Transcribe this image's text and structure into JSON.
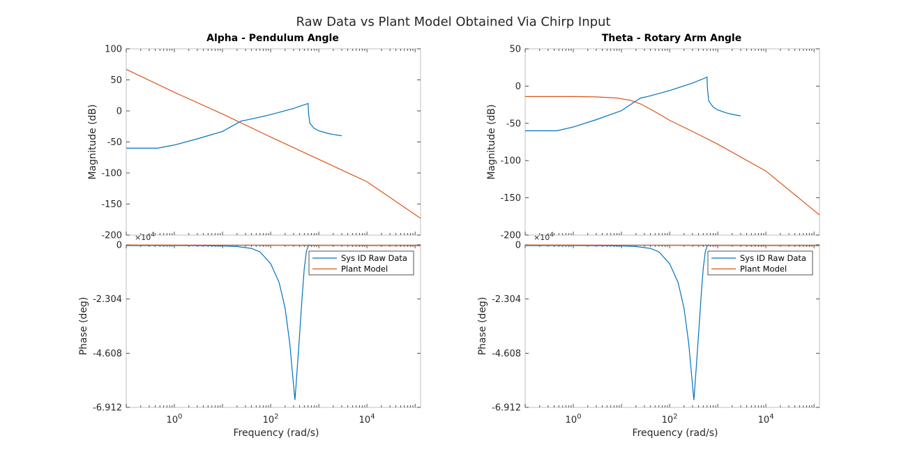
{
  "figure": {
    "title": "Raw Data vs Plant Model Obtained Via Chirp Input"
  },
  "colors": {
    "raw": "#0072BD",
    "model": "#D95319",
    "axis": "#262626",
    "frame": "#bfbfbf"
  },
  "chart_data": [
    {
      "type": "line",
      "title": "Alpha - Pendulum Angle",
      "xscale": "log",
      "xlim": [
        0.1,
        130000
      ],
      "xticks": [
        1,
        100,
        10000
      ],
      "xtick_labels": [
        {
          "base": "10",
          "exp": "0"
        },
        {
          "base": "10",
          "exp": "2"
        },
        {
          "base": "10",
          "exp": "4"
        }
      ],
      "xlabel": "Frequency  (rad/s)",
      "magnitude": {
        "ylabel": "Magnitude (dB)",
        "ylim": [
          -200,
          100
        ],
        "yticks": [
          100,
          50,
          0,
          -50,
          -100,
          -150,
          -200
        ],
        "series": [
          {
            "name": "Sys ID Raw Data",
            "x": [
              0.1,
              0.45,
              1,
              3,
              10,
              20,
              25,
              30,
              40,
              100,
              300,
              600,
              610,
              650,
              800,
              1000,
              1500,
              2000,
              3000
            ],
            "y": [
              -60,
              -60,
              -55,
              -45,
              -33,
              -20,
              -16,
              -15,
              -13,
              -6,
              4,
              12,
              -3,
              -20,
              -28,
              -32,
              -36,
              -38,
              -40
            ]
          },
          {
            "name": "Plant Model",
            "x": [
              0.1,
              1,
              10,
              100,
              1000,
              10000,
              130000
            ],
            "y": [
              67,
              30,
              -5,
              -42,
              -78,
              -114,
              -173
            ]
          }
        ]
      },
      "phase": {
        "ylabel": "Phase (deg)",
        "ylim": [
          -69120,
          0
        ],
        "yticks": [
          0,
          -23040,
          -46080,
          -69120
        ],
        "ytick_labels": [
          "0",
          "-2.304",
          "-4.608",
          "-6.912"
        ],
        "multiplier": {
          "base": "×10",
          "exp": "4"
        },
        "legend_position": "top-right",
        "series": [
          {
            "name": "Sys ID Raw Data",
            "x": [
              0.1,
              1,
              5,
              10,
              20,
              40,
              60,
              100,
              150,
              200,
              250,
              300,
              320,
              350,
              400,
              450,
              500,
              550,
              600,
              650
            ],
            "y": [
              -300,
              -300,
              -400,
              -500,
              -700,
              -1500,
              -3000,
              -8000,
              -16000,
              -27000,
              -42000,
              -60000,
              -66000,
              -55000,
              -38000,
              -22000,
              -10000,
              -3000,
              -500,
              0
            ]
          },
          {
            "name": "Plant Model",
            "x": [
              0.1,
              1,
              10,
              100,
              1000,
              10000,
              130000
            ],
            "y": [
              -100,
              -150,
              -200,
              -250,
              -300,
              -320,
              -330
            ]
          }
        ]
      }
    },
    {
      "type": "line",
      "title": "Theta - Rotary Arm Angle",
      "xscale": "log",
      "xlim": [
        0.1,
        130000
      ],
      "xticks": [
        1,
        100,
        10000
      ],
      "xtick_labels": [
        {
          "base": "10",
          "exp": "0"
        },
        {
          "base": "10",
          "exp": "2"
        },
        {
          "base": "10",
          "exp": "4"
        }
      ],
      "xlabel": "Frequency  (rad/s)",
      "magnitude": {
        "ylabel": "Magnitude (dB)",
        "ylim": [
          -200,
          50
        ],
        "yticks": [
          50,
          0,
          -50,
          -100,
          -150,
          -200
        ],
        "series": [
          {
            "name": "Sys ID Raw Data",
            "x": [
              0.1,
              0.45,
              1,
              3,
              10,
              20,
              25,
              30,
              40,
              100,
              300,
              600,
              610,
              650,
              800,
              1000,
              1500,
              2000,
              3000
            ],
            "y": [
              -60,
              -60,
              -55,
              -45,
              -33,
              -20,
              -16,
              -15,
              -13,
              -6,
              4,
              12,
              -3,
              -20,
              -28,
              -32,
              -36,
              -38,
              -40
            ]
          },
          {
            "name": "Plant Model",
            "x": [
              0.1,
              1,
              3,
              8,
              15,
              25,
              40,
              70,
              100,
              300,
              1000,
              10000,
              130000
            ],
            "y": [
              -14,
              -14,
              -14.5,
              -16,
              -19,
              -24,
              -31,
              -40,
              -46,
              -61,
              -78,
              -114,
              -173
            ]
          }
        ]
      },
      "phase": {
        "ylabel": "Phase (deg)",
        "ylim": [
          -69120,
          0
        ],
        "yticks": [
          0,
          -23040,
          -46080,
          -69120
        ],
        "ytick_labels": [
          "0",
          "-2.304",
          "-4.608",
          "-6.912"
        ],
        "multiplier": {
          "base": "×10",
          "exp": "4"
        },
        "legend_position": "top-right",
        "series": [
          {
            "name": "Sys ID Raw Data",
            "x": [
              0.1,
              1,
              5,
              10,
              20,
              40,
              60,
              100,
              150,
              200,
              250,
              300,
              320,
              350,
              400,
              450,
              500,
              550,
              600,
              650
            ],
            "y": [
              -300,
              -300,
              -400,
              -500,
              -700,
              -1500,
              -3000,
              -8000,
              -16000,
              -27000,
              -42000,
              -60000,
              -66000,
              -55000,
              -38000,
              -22000,
              -10000,
              -3000,
              -500,
              0
            ]
          },
          {
            "name": "Plant Model",
            "x": [
              0.1,
              1,
              10,
              100,
              1000,
              10000,
              130000
            ],
            "y": [
              -100,
              -150,
              -200,
              -250,
              -300,
              -320,
              -330
            ]
          }
        ]
      }
    }
  ]
}
